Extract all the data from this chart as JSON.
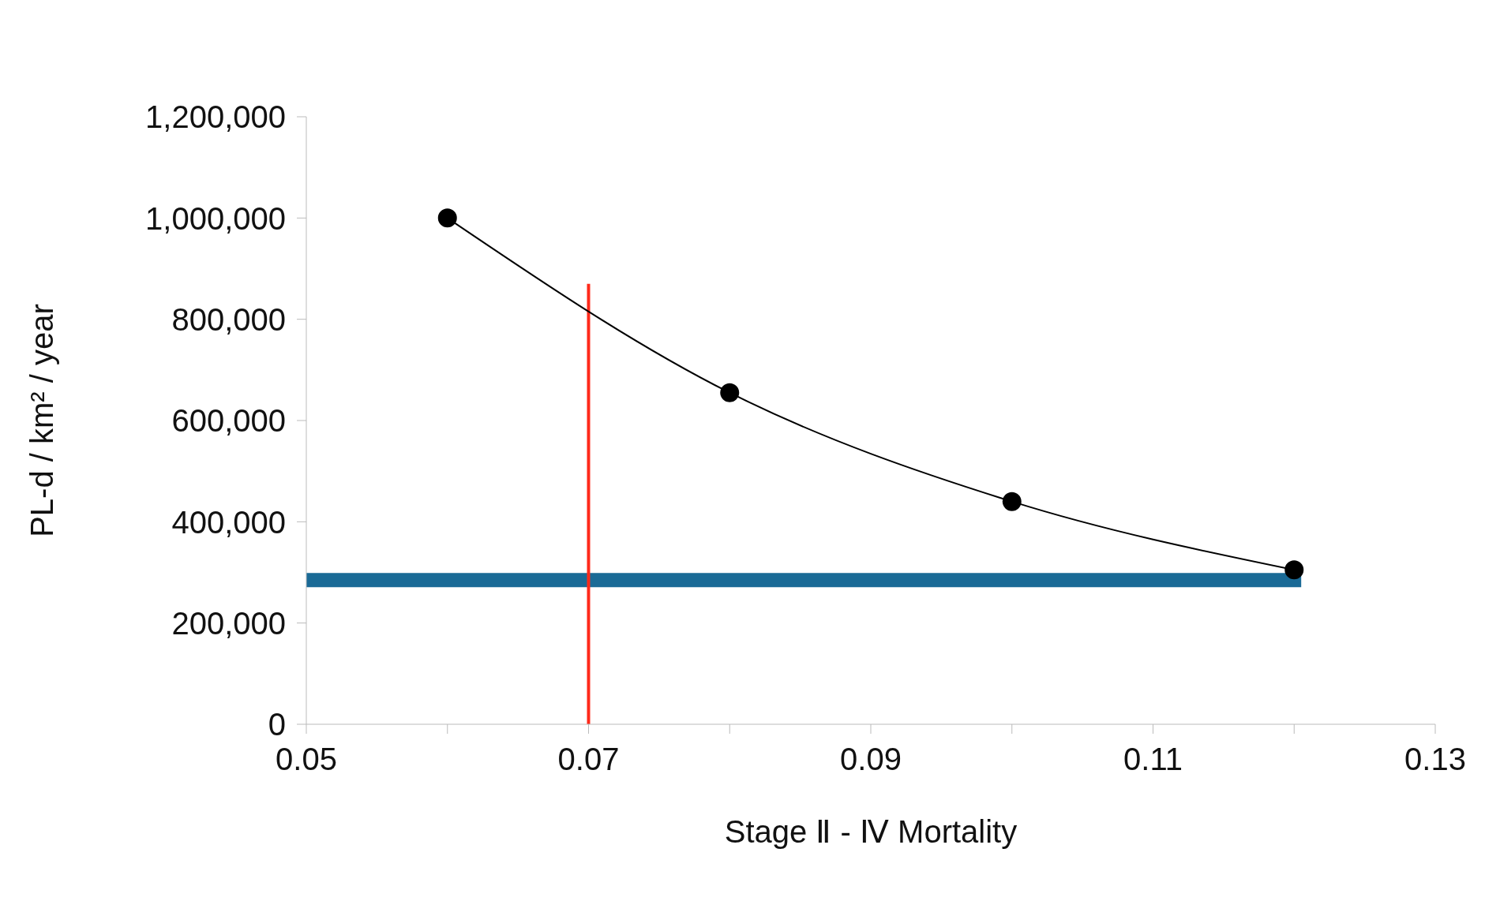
{
  "chart_data": {
    "type": "line",
    "xlabel": "Stage Ⅱ - Ⅳ Mortality",
    "ylabel": "PL-d / km² / year",
    "xlim": [
      0.05,
      0.13
    ],
    "xticks": [
      0.05,
      {
        "value": 0.06,
        "label": null
      },
      0.07,
      {
        "value": 0.08,
        "label": null
      },
      0.09,
      {
        "value": 0.1,
        "label": null
      },
      0.11,
      {
        "value": 0.12,
        "label": null
      },
      0.13
    ],
    "ylim": [
      0,
      1200000
    ],
    "yticks": [
      {
        "value": 0,
        "label": "0"
      },
      {
        "value": 200000,
        "label": "200,000"
      },
      {
        "value": 400000,
        "label": "400,000"
      },
      {
        "value": 600000,
        "label": "600,000"
      },
      {
        "value": 800000,
        "label": "800,000"
      },
      {
        "value": 1000000,
        "label": "1,000,000"
      },
      {
        "value": 1200000,
        "label": "1,200,000"
      }
    ],
    "series": [
      {
        "color": "#1a6a96",
        "x": [
          0.05,
          0.1205
        ],
        "values": [
          285000,
          285000
        ],
        "marker": "none"
      },
      {
        "color": "#ff2a1a",
        "x": [
          0.07,
          0.07
        ],
        "values": [
          0,
          870000
        ],
        "marker": "none"
      },
      {
        "color": "#000000",
        "x": [
          0.06,
          0.08,
          0.1,
          0.12
        ],
        "values": [
          1000000,
          655000,
          440000,
          305000
        ],
        "marker": "circle"
      }
    ]
  }
}
